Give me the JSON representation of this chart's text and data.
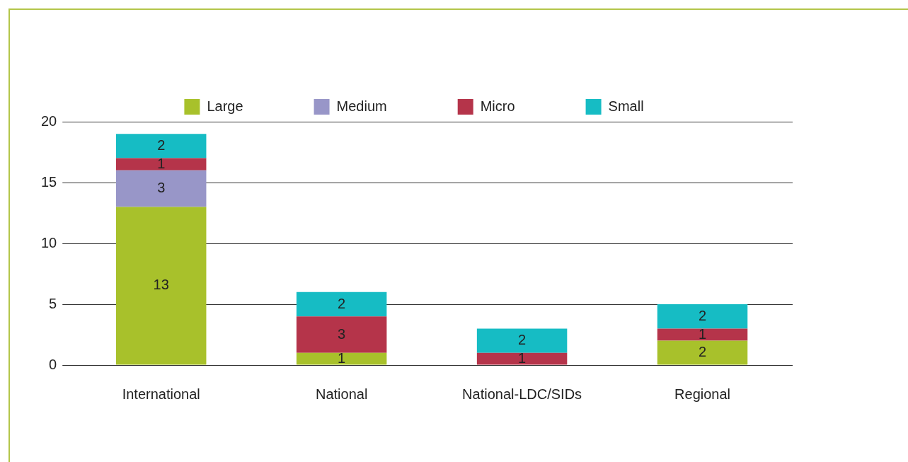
{
  "chart_data": {
    "type": "bar",
    "stacked": true,
    "categories": [
      "International",
      "National",
      "National-LDC/SIDs",
      "Regional"
    ],
    "series": [
      {
        "name": "Large",
        "color": "#a8c12b",
        "values": [
          13,
          1,
          null,
          2
        ]
      },
      {
        "name": "Medium",
        "color": "#9896c8",
        "values": [
          3,
          null,
          null,
          null
        ]
      },
      {
        "name": "Micro",
        "color": "#b5344a",
        "values": [
          1,
          3,
          1,
          1
        ]
      },
      {
        "name": "Small",
        "color": "#16bcc4",
        "values": [
          2,
          2,
          2,
          2
        ]
      }
    ],
    "ylim": [
      0,
      20
    ],
    "yticks": [
      0,
      5,
      10,
      15,
      20
    ],
    "grid": "y",
    "legend": "top",
    "data_labels": true
  }
}
